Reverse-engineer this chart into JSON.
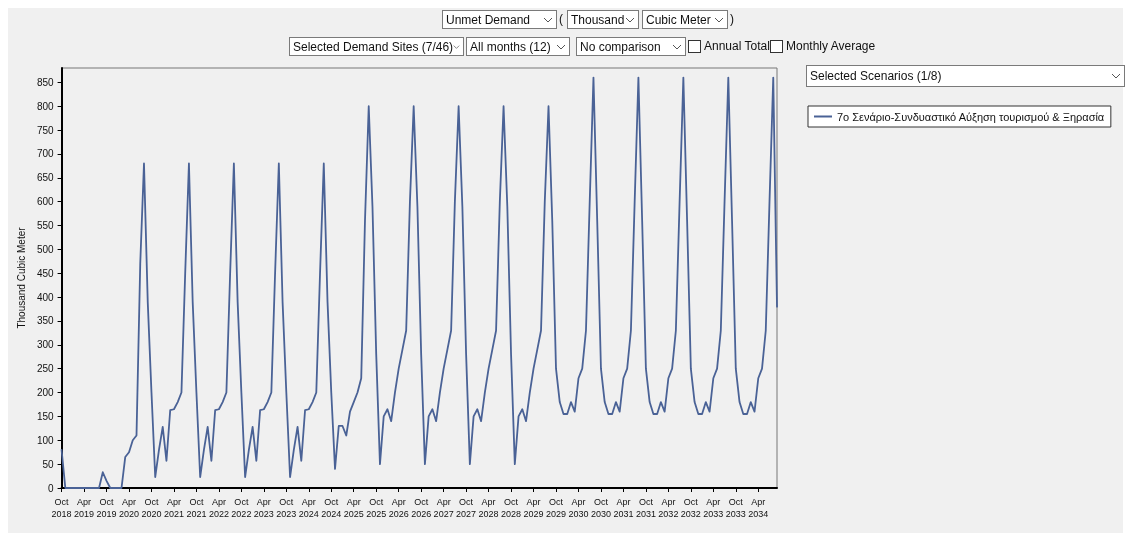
{
  "chart_data": {
    "type": "line",
    "ylabel": "Thousand Cubic Meter",
    "categories": [
      "Oct 2018",
      null,
      null,
      null,
      null,
      null,
      "Apr 2019",
      null,
      null,
      null,
      null,
      null,
      "Oct 2019",
      null,
      null,
      null,
      null,
      null,
      "Apr 2020",
      null,
      null,
      null,
      null,
      null,
      "Oct 2020",
      null,
      null,
      null,
      null,
      null,
      "Apr 2021",
      null,
      null,
      null,
      null,
      null,
      "Oct 2021",
      null,
      null,
      null,
      null,
      null,
      "Apr 2022",
      null,
      null,
      null,
      null,
      null,
      "Oct 2022",
      null,
      null,
      null,
      null,
      null,
      "Apr 2023",
      null,
      null,
      null,
      null,
      null,
      "Oct 2023",
      null,
      null,
      null,
      null,
      null,
      "Apr 2024",
      null,
      null,
      null,
      null,
      null,
      "Oct 2024",
      null,
      null,
      null,
      null,
      null,
      "Apr 2025",
      null,
      null,
      null,
      null,
      null,
      "Oct 2025",
      null,
      null,
      null,
      null,
      null,
      "Apr 2026",
      null,
      null,
      null,
      null,
      null,
      "Oct 2026",
      null,
      null,
      null,
      null,
      null,
      "Apr 2027",
      null,
      null,
      null,
      null,
      null,
      "Oct 2027",
      null,
      null,
      null,
      null,
      null,
      "Apr 2028",
      null,
      null,
      null,
      null,
      null,
      "Oct 2028",
      null,
      null,
      null,
      null,
      null,
      "Apr 2029",
      null,
      null,
      null,
      null,
      null,
      "Oct 2029",
      null,
      null,
      null,
      null,
      null,
      "Apr 2030",
      null,
      null,
      null,
      null,
      null,
      "Oct 2030",
      null,
      null,
      null,
      null,
      null,
      "Apr 2031",
      null,
      null,
      null,
      null,
      null,
      "Oct 2031",
      null,
      null,
      null,
      null,
      null,
      "Apr 2032",
      null,
      null,
      null,
      null,
      null,
      "Oct 2032",
      null,
      null,
      null,
      null,
      null,
      "Apr 2033",
      null,
      null,
      null,
      null,
      null,
      "Oct 2033",
      null,
      null,
      null,
      null,
      null,
      "Apr 2034",
      null,
      null,
      null,
      null,
      null
    ],
    "series": [
      {
        "name": "7ο Σενάριο-Συνδυαστικό Αύξηση τουρισμού & Ξηρασία",
        "color": "#4a6296",
        "values": [
          80,
          0,
          0,
          0,
          0,
          0,
          0,
          0,
          0,
          0,
          0,
          33,
          15,
          0,
          0,
          0,
          0,
          65,
          75,
          100,
          110,
          470,
          680,
          390,
          200,
          23,
          80,
          128,
          57,
          163,
          165,
          180,
          200,
          450,
          680,
          390,
          200,
          23,
          80,
          128,
          57,
          163,
          165,
          180,
          200,
          450,
          680,
          390,
          200,
          23,
          80,
          128,
          57,
          163,
          165,
          180,
          200,
          450,
          680,
          390,
          200,
          23,
          80,
          128,
          57,
          163,
          165,
          180,
          200,
          450,
          680,
          390,
          200,
          40,
          130,
          130,
          110,
          160,
          180,
          200,
          230,
          560,
          800,
          590,
          280,
          50,
          150,
          165,
          140,
          200,
          250,
          290,
          330,
          600,
          800,
          590,
          280,
          50,
          150,
          165,
          140,
          200,
          250,
          290,
          330,
          600,
          800,
          590,
          280,
          50,
          150,
          165,
          140,
          200,
          250,
          290,
          330,
          600,
          800,
          590,
          280,
          50,
          150,
          165,
          140,
          200,
          250,
          290,
          330,
          600,
          800,
          560,
          250,
          180,
          155,
          155,
          180,
          160,
          230,
          250,
          330,
          600,
          860,
          560,
          250,
          180,
          155,
          155,
          180,
          160,
          230,
          250,
          330,
          600,
          860,
          560,
          250,
          180,
          155,
          155,
          180,
          160,
          230,
          250,
          330,
          600,
          860,
          560,
          250,
          180,
          155,
          155,
          180,
          160,
          230,
          250,
          330,
          600,
          860,
          560,
          250,
          180,
          155,
          155,
          180,
          160,
          230,
          250,
          330,
          600,
          860,
          380
        ]
      }
    ],
    "ylim": [
      0,
      880
    ],
    "yticks": [
      0,
      50,
      100,
      150,
      200,
      250,
      300,
      350,
      400,
      450,
      500,
      550,
      600,
      650,
      700,
      750,
      800,
      850
    ],
    "grid": false,
    "legend": "top right",
    "marker": "none",
    "line_style": "solid",
    "annotations": [
      "Unmet Demand",
      "(",
      "Thousand",
      "Cubic Meter",
      ")",
      "Selected Demand Sites (7/46)",
      "All months (12)",
      "No comparison",
      "Annual Total",
      "Monthly Average",
      "Selected Scenarios (1/8)"
    ]
  }
}
